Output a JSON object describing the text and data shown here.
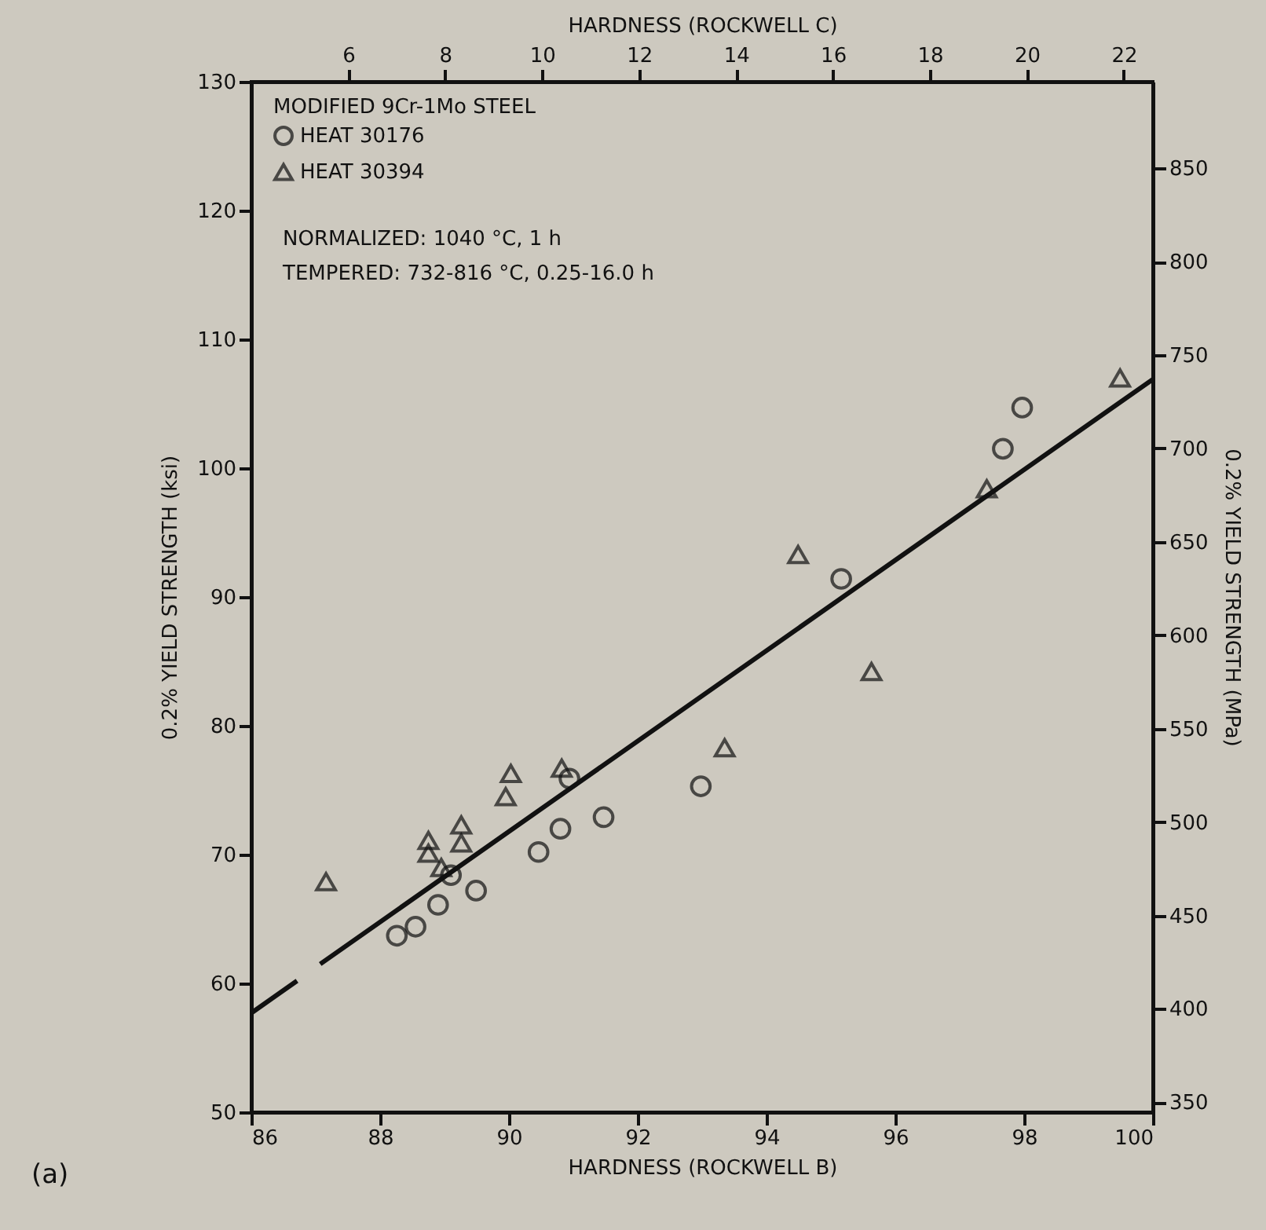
{
  "chart_data": {
    "type": "scatter",
    "xlabel": "HARDNESS (ROCKWELL B)",
    "ylabel": "0.2% YIELD STRENGTH (ksi)",
    "y2label": "0.2% YIELD STRENGTH (MPa)",
    "x2label": "HARDNESS (ROCKWELL C)",
    "legend_title": "MODIFIED 9Cr-1Mo STEEL",
    "legend": "top left",
    "annotations": [
      "NORMALIZED: 1040 °C, 1 h",
      "TEMPERED: 732-816 °C, 0.25-16.0 h",
      "(a)"
    ],
    "xlim": [
      86,
      100
    ],
    "xticks": [
      86,
      88,
      90,
      92,
      94,
      96,
      98,
      100
    ],
    "ylim": [
      50,
      130
    ],
    "yticks": [
      50,
      60,
      70,
      80,
      90,
      100,
      110,
      120,
      130
    ],
    "y2lim": [
      344.7,
      896.3
    ],
    "y2ticks": [
      350,
      400,
      450,
      500,
      550,
      600,
      650,
      700,
      750,
      800,
      850
    ],
    "x2lim": [
      4.0,
      22.6
    ],
    "x2ticks": [
      6,
      8,
      10,
      12,
      14,
      16,
      18,
      20,
      22
    ],
    "grid": false,
    "series": [
      {
        "name": "HEAT 30176",
        "color": "#111111",
        "marker": "circle",
        "x": [
          88.26,
          88.55,
          88.9,
          89.1,
          89.49,
          90.46,
          90.8,
          90.94,
          91.47,
          92.98,
          95.16,
          97.67,
          97.97
        ],
        "values": [
          63.7,
          64.4,
          66.1,
          68.4,
          67.2,
          70.2,
          72.0,
          75.9,
          72.9,
          75.3,
          91.4,
          101.5,
          104.7
        ]
      },
      {
        "name": "HEAT 30394",
        "color": "#111111",
        "marker": "triangle",
        "x": [
          87.16,
          88.75,
          88.75,
          88.95,
          89.26,
          89.26,
          89.95,
          90.03,
          90.82,
          93.35,
          94.49,
          95.63,
          97.42,
          99.49
        ],
        "values": [
          67.9,
          71.1,
          70.1,
          69.0,
          72.3,
          70.9,
          74.5,
          76.3,
          76.7,
          78.3,
          93.3,
          84.2,
          98.4,
          107.0
        ]
      },
      {
        "type": "line",
        "color": "#111111",
        "line_style": "solid",
        "x": [
          86,
          86.71,
          86.9,
          87.07,
          100
        ],
        "values": [
          57.7,
          60.2,
          null,
          61.5,
          106.9
        ]
      }
    ]
  }
}
